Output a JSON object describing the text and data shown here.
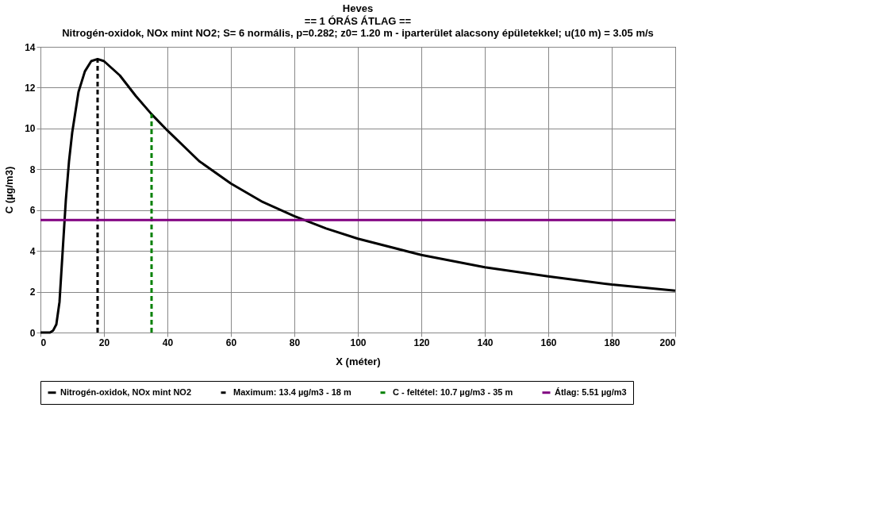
{
  "chart_data": {
    "type": "line",
    "title": "Heves",
    "subtitle": "== 1 ÓRÁS ÁTLAG ==\nNitrogén-oxidok, NOx mint NO2; S= 6 normális, p=0.282; z0= 1.20 m - iparterület alacsony épületekkel; u(10 m) = 3.05 m/s",
    "xlabel": "X (méter)",
    "ylabel": "C (µg/m3)",
    "xlim": [
      0,
      200
    ],
    "xticks": [
      0,
      20,
      40,
      60,
      80,
      100,
      120,
      140,
      160,
      180,
      200
    ],
    "ylim": [
      0,
      14
    ],
    "yticks": [
      0,
      2,
      4,
      6,
      8,
      10,
      12,
      14
    ],
    "grid": true,
    "legend": "bottom",
    "series": [
      {
        "name": "Nitrogén-oxidok, NOx mint NO2",
        "color": "#000000",
        "line_style": "solid",
        "x": [
          0,
          3,
          4,
          5,
          6,
          7,
          8,
          9,
          10,
          12,
          14,
          16,
          18,
          20,
          25,
          30,
          35,
          40,
          50,
          60,
          70,
          80,
          90,
          100,
          120,
          140,
          160,
          180,
          200
        ],
        "values": [
          0,
          0,
          0.1,
          0.4,
          1.5,
          4,
          6.5,
          8.4,
          9.8,
          11.8,
          12.8,
          13.3,
          13.4,
          13.3,
          12.6,
          11.6,
          10.7,
          9.9,
          8.4,
          7.3,
          6.4,
          5.7,
          5.1,
          4.6,
          3.8,
          3.2,
          2.75,
          2.35,
          2.05
        ]
      },
      {
        "name": "Maximum: 13.4 µg/m3 - 18 m",
        "color": "#000000",
        "line_style": "dashed",
        "x": [
          18,
          18
        ],
        "values": [
          0,
          13.4
        ]
      },
      {
        "name": "C - feltétel: 10.7 µg/m3 - 35 m",
        "color": "#008000",
        "line_style": "dashed",
        "x": [
          35,
          35
        ],
        "values": [
          0,
          10.7
        ]
      },
      {
        "name": "Átlag: 5.51 µg/m3",
        "color": "#800080",
        "line_style": "solid",
        "x": [
          0,
          200
        ],
        "values": [
          5.51,
          5.51
        ]
      }
    ]
  }
}
